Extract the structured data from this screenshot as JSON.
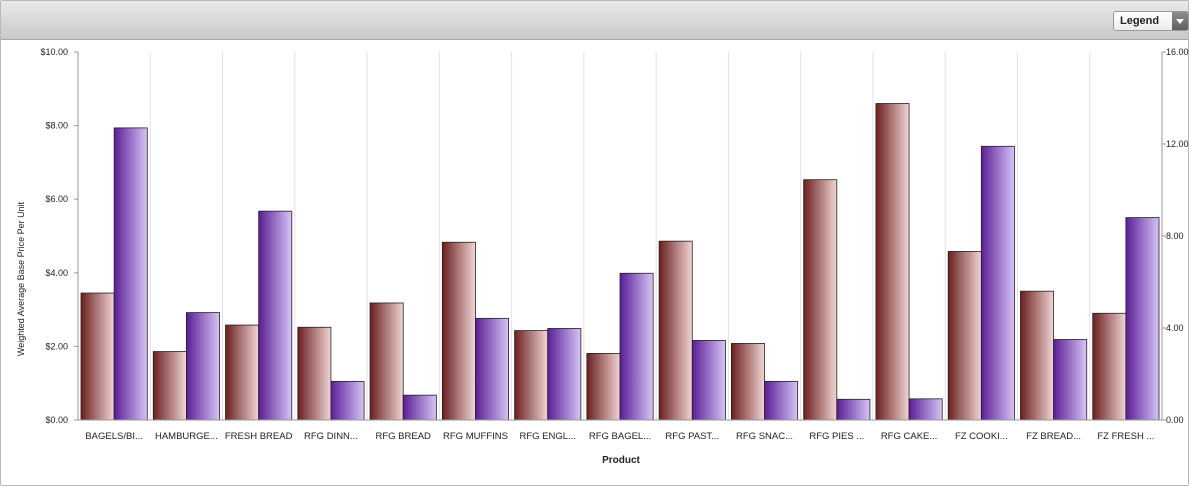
{
  "legend": {
    "label": "Legend"
  },
  "colors": {
    "series1_dark": "#6b1f1f",
    "series1_light": "#f1d5d5",
    "series2_dark": "#5a1e94",
    "series2_light": "#d6c4f7"
  },
  "chart_data": {
    "type": "bar",
    "xlabel": "Product",
    "ylabel": "Weighted Average Base Price Per Unit",
    "ylim": [
      0,
      10
    ],
    "y2lim": [
      0,
      16
    ],
    "yticks": [
      "$0.00",
      "$2.00",
      "$4.00",
      "$6.00",
      "$8.00",
      "$10.00"
    ],
    "y2ticks": [
      "0.00",
      "4.00",
      "8.00",
      "12.00",
      "16.00"
    ],
    "categories": [
      "BAGELS/BI...",
      "HAMBURGE...",
      "FRESH BREAD",
      "RFG DINN...",
      "RFG BREAD",
      "RFG MUFFINS",
      "RFG ENGL...",
      "RFG BAGEL...",
      "RFG PAST...",
      "RFG SNAC...",
      "RFG PIES ...",
      "RFG CAKE...",
      "FZ COOKI...",
      "FZ BREAD...",
      "FZ FRESH ..."
    ],
    "series": [
      {
        "axis": "left",
        "values": [
          3.45,
          1.86,
          2.58,
          2.52,
          3.18,
          4.83,
          2.43,
          1.81,
          4.86,
          2.08,
          6.53,
          8.6,
          4.58,
          3.5,
          2.9
        ]
      },
      {
        "axis": "right",
        "values": [
          12.7,
          4.67,
          9.08,
          1.68,
          1.08,
          4.42,
          3.98,
          6.38,
          3.46,
          1.68,
          0.9,
          0.92,
          11.9,
          3.5,
          8.8
        ]
      }
    ]
  }
}
